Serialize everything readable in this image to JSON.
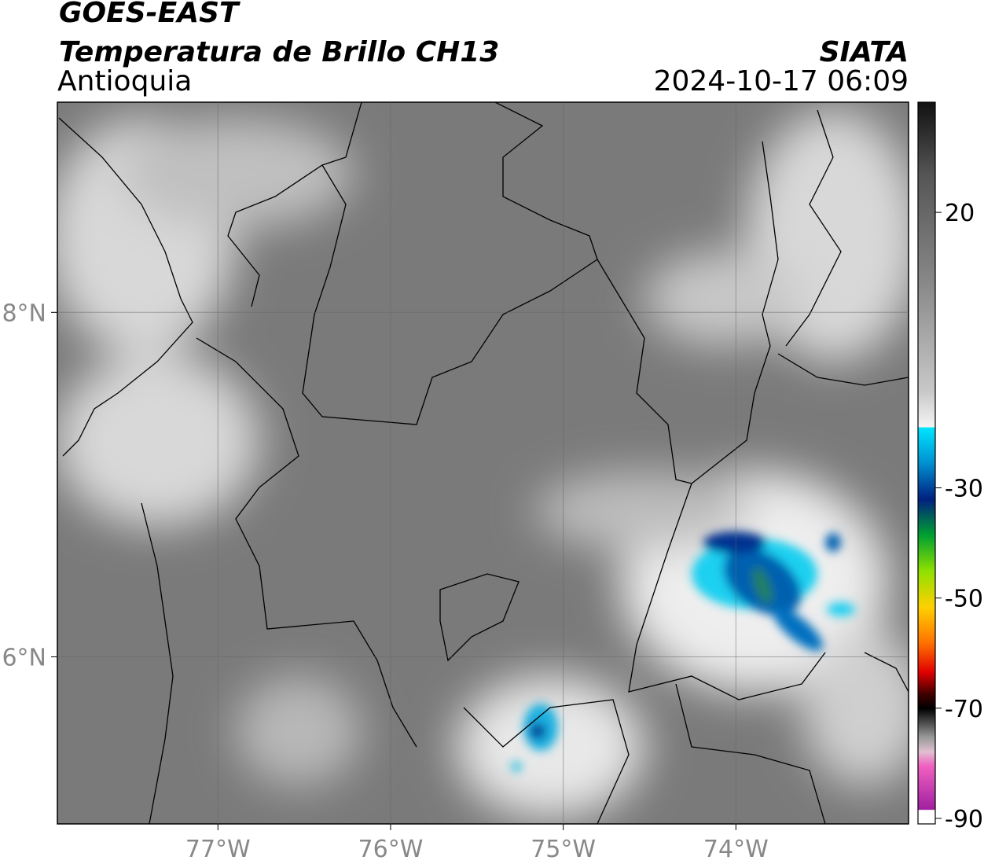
{
  "header": {
    "title": "GOES-EAST",
    "subtitle": "Temperatura de Brillo CH13",
    "region": "Antioquia",
    "source": "SIATA",
    "datetime": "2024-10-17 06:09"
  },
  "map": {
    "xlim": [
      -77.93,
      -73.0
    ],
    "ylim": [
      5.03,
      9.22
    ],
    "xticks": [
      {
        "value": -77,
        "label": "77°W"
      },
      {
        "value": -76,
        "label": "76°W"
      },
      {
        "value": -75,
        "label": "75°W"
      },
      {
        "value": -74,
        "label": "74°W"
      }
    ],
    "yticks": [
      {
        "value": 6,
        "label": "6°N"
      },
      {
        "value": 8,
        "label": "8°N"
      }
    ],
    "grid": true
  },
  "colorbar": {
    "lim": [
      -91,
      40
    ],
    "ticks": [
      20,
      -30,
      -50,
      -70,
      -90
    ]
  }
}
